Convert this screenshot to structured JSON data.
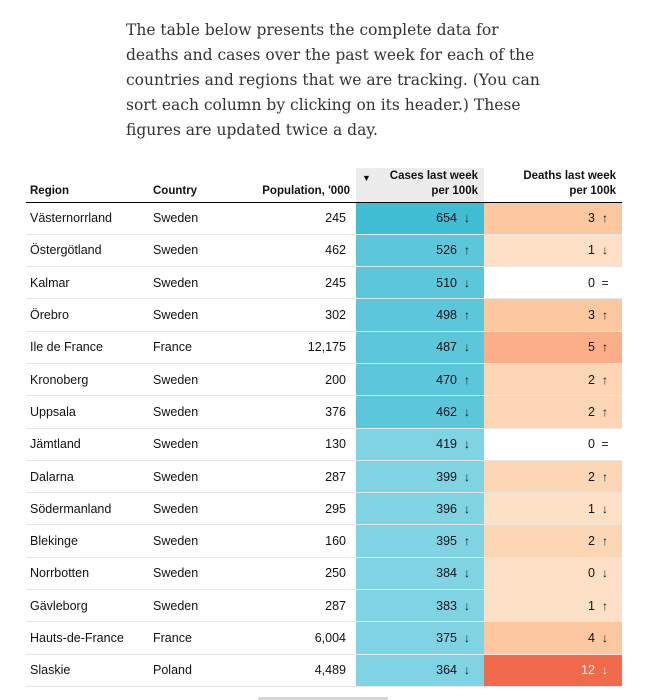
{
  "intro_text": "The table below presents the complete data for deaths and cases over the past week for each of the countries and regions that we are tracking. (You can sort each column by clicking on its header.) These figures are updated twice a day.",
  "table": {
    "sort_indicator": "▼",
    "headers": {
      "region": "Region",
      "country": "Country",
      "population": "Population, '000",
      "cases_line1": "Cases last week",
      "cases_line2": "per 100k",
      "deaths_line1": "Deaths last week",
      "deaths_line2": "per 100k"
    },
    "rows": [
      {
        "region": "Västernorrland",
        "country": "Sweden",
        "population": "245",
        "cases": "654",
        "cases_trend": "↓",
        "deaths": "3",
        "deaths_trend": "↑",
        "cases_color": "#40bcd3",
        "deaths_color": "#fdc7a0"
      },
      {
        "region": "Östergötland",
        "country": "Sweden",
        "population": "462",
        "cases": "526",
        "cases_trend": "↑",
        "deaths": "1",
        "deaths_trend": "↓",
        "cases_color": "#5cc6da",
        "deaths_color": "#fde0c6"
      },
      {
        "region": "Kalmar",
        "country": "Sweden",
        "population": "245",
        "cases": "510",
        "cases_trend": "↓",
        "deaths": "0",
        "deaths_trend": "=",
        "cases_color": "#5cc6da",
        "deaths_color": "#ffffff"
      },
      {
        "region": "Örebro",
        "country": "Sweden",
        "population": "302",
        "cases": "498",
        "cases_trend": "↑",
        "deaths": "3",
        "deaths_trend": "↑",
        "cases_color": "#5cc6da",
        "deaths_color": "#fdc7a0"
      },
      {
        "region": "Ile de France",
        "country": "France",
        "population": "12,175",
        "cases": "487",
        "cases_trend": "↓",
        "deaths": "5",
        "deaths_trend": "↑",
        "cases_color": "#5cc6da",
        "deaths_color": "#fcae88"
      },
      {
        "region": "Kronoberg",
        "country": "Sweden",
        "population": "200",
        "cases": "470",
        "cases_trend": "↑",
        "deaths": "2",
        "deaths_trend": "↑",
        "cases_color": "#5cc6da",
        "deaths_color": "#fdd6b6"
      },
      {
        "region": "Uppsala",
        "country": "Sweden",
        "population": "376",
        "cases": "462",
        "cases_trend": "↓",
        "deaths": "2",
        "deaths_trend": "↑",
        "cases_color": "#5cc6da",
        "deaths_color": "#fdd6b6"
      },
      {
        "region": "Jämtland",
        "country": "Sweden",
        "population": "130",
        "cases": "419",
        "cases_trend": "↓",
        "deaths": "0",
        "deaths_trend": "=",
        "cases_color": "#7fd3e2",
        "deaths_color": "#ffffff"
      },
      {
        "region": "Dalarna",
        "country": "Sweden",
        "population": "287",
        "cases": "399",
        "cases_trend": "↓",
        "deaths": "2",
        "deaths_trend": "↑",
        "cases_color": "#7fd3e2",
        "deaths_color": "#fdd6b6"
      },
      {
        "region": "Södermanland",
        "country": "Sweden",
        "population": "295",
        "cases": "396",
        "cases_trend": "↓",
        "deaths": "1",
        "deaths_trend": "↓",
        "cases_color": "#7fd3e2",
        "deaths_color": "#fde0c6"
      },
      {
        "region": "Blekinge",
        "country": "Sweden",
        "population": "160",
        "cases": "395",
        "cases_trend": "↑",
        "deaths": "2",
        "deaths_trend": "↑",
        "cases_color": "#7fd3e2",
        "deaths_color": "#fdd6b6"
      },
      {
        "region": "Norrbotten",
        "country": "Sweden",
        "population": "250",
        "cases": "384",
        "cases_trend": "↓",
        "deaths": "0",
        "deaths_trend": "↓",
        "cases_color": "#7fd3e2",
        "deaths_color": "#fde0c6"
      },
      {
        "region": "Gävleborg",
        "country": "Sweden",
        "population": "287",
        "cases": "383",
        "cases_trend": "↓",
        "deaths": "1",
        "deaths_trend": "↑",
        "cases_color": "#7fd3e2",
        "deaths_color": "#fde0c6"
      },
      {
        "region": "Hauts-de-France",
        "country": "France",
        "population": "6,004",
        "cases": "375",
        "cases_trend": "↓",
        "deaths": "4",
        "deaths_trend": "↓",
        "cases_color": "#7fd3e2",
        "deaths_color": "#fdc7a0"
      },
      {
        "region": "Slaskie",
        "country": "Poland",
        "population": "4,489",
        "cases": "364",
        "cases_trend": "↓",
        "deaths": "12",
        "deaths_trend": "↓",
        "cases_color": "#7fd3e2",
        "deaths_color": "#f26a4c",
        "deaths_text_color": "#ffffff"
      }
    ]
  }
}
